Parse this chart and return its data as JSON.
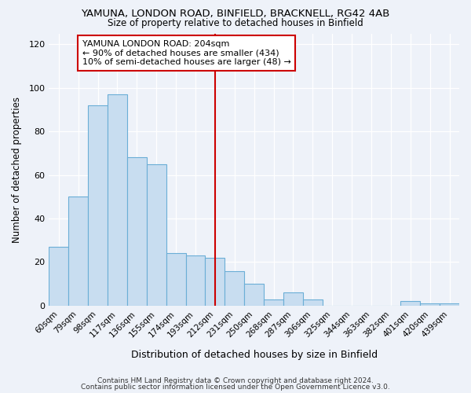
{
  "title1": "YAMUNA, LONDON ROAD, BINFIELD, BRACKNELL, RG42 4AB",
  "title2": "Size of property relative to detached houses in Binfield",
  "xlabel": "Distribution of detached houses by size in Binfield",
  "ylabel": "Number of detached properties",
  "categories": [
    "60sqm",
    "79sqm",
    "98sqm",
    "117sqm",
    "136sqm",
    "155sqm",
    "174sqm",
    "193sqm",
    "212sqm",
    "231sqm",
    "250sqm",
    "268sqm",
    "287sqm",
    "306sqm",
    "325sqm",
    "344sqm",
    "363sqm",
    "382sqm",
    "401sqm",
    "420sqm",
    "439sqm"
  ],
  "values": [
    27,
    50,
    92,
    97,
    68,
    65,
    24,
    23,
    22,
    16,
    10,
    3,
    6,
    3,
    0,
    0,
    0,
    0,
    2,
    1,
    1
  ],
  "bar_color": "#c8ddf0",
  "bar_edge_color": "#6baed6",
  "vline_index": 8,
  "annotation_text": "YAMUNA LONDON ROAD: 204sqm\n← 90% of detached houses are smaller (434)\n10% of semi-detached houses are larger (48) →",
  "annotation_box_color": "#ffffff",
  "annotation_box_edge": "#cc0000",
  "vline_color": "#cc0000",
  "footer1": "Contains HM Land Registry data © Crown copyright and database right 2024.",
  "footer2": "Contains public sector information licensed under the Open Government Licence v3.0.",
  "bg_color": "#eef2f9",
  "ylim": [
    0,
    125
  ],
  "yticks": [
    0,
    20,
    40,
    60,
    80,
    100,
    120
  ]
}
